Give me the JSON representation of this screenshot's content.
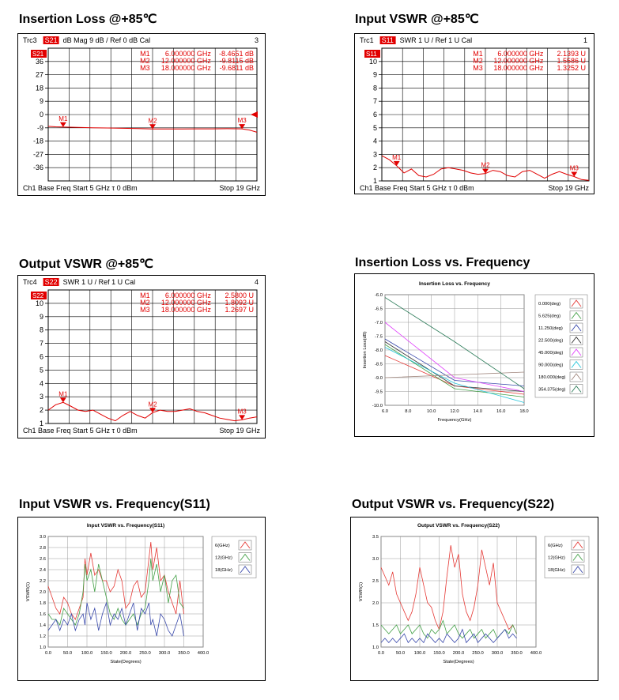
{
  "page_titles": [
    "Insertion Loss @+85℃",
    "Input VSWR @+85℃",
    "Output VSWR @+85℃",
    "Insertion Loss vs. Frequency",
    "Input VSWR vs. Frequency(S11)",
    "Output VSWR  vs. Frequency(S22)"
  ],
  "chart_data": [
    {
      "id": "il85",
      "type": "line",
      "title": "Insertion Loss @+85℃",
      "header": {
        "trc": "Trc3",
        "param": "S21",
        "rest": "dB Mag   9 dB /  Ref 0 dB      Cal",
        "num": "3",
        "tag": "S21"
      },
      "markers": [
        {
          "name": "M1",
          "freq": "6.000000 GHz",
          "val": "-8.4651  dB",
          "x": 6,
          "y": -8.47
        },
        {
          "name": "M2",
          "freq": "12.000000 GHz",
          "val": "-9.8115 dB",
          "x": 12,
          "y": -9.81
        },
        {
          "name": "M3",
          "freq": "18.000000 GHz",
          "val": "-9.6811 dB",
          "x": 18,
          "y": -9.68
        }
      ],
      "footer": {
        "left": "Ch1   Base Freq   Start  5 GHz τ   0 dBm",
        "right": "Stop  19 GHz"
      },
      "xlim": [
        5,
        19
      ],
      "ylim": [
        -45,
        45
      ],
      "yticks": [
        36,
        27,
        18,
        9,
        0,
        -9,
        -18,
        -27,
        -36
      ],
      "yticklabels": [
        "36",
        "27",
        "18",
        "9",
        "0",
        "-9",
        "-18",
        "-27",
        "-36"
      ],
      "x": [
        5,
        5.5,
        6,
        7,
        8,
        9,
        10,
        11,
        12,
        13,
        14,
        15,
        16,
        17,
        18,
        18.5,
        19
      ],
      "y": [
        -8,
        -8.3,
        -8.47,
        -8.7,
        -9.0,
        -9.1,
        -9.3,
        -9.5,
        -9.81,
        -9.8,
        -9.8,
        -9.7,
        -9.7,
        -9.6,
        -9.68,
        -10.5,
        -12
      ]
    },
    {
      "id": "ivswr85",
      "type": "line",
      "title": "Input VSWR @+85℃",
      "header": {
        "trc": "Trc1",
        "param": "S11",
        "rest": "SWR   1 U /  Ref 1 U      Cal",
        "num": "1",
        "tag": "S11"
      },
      "markers": [
        {
          "name": "M1",
          "freq": "6.000000 GHz",
          "val": "2.1393  U",
          "x": 6,
          "y": 2.14
        },
        {
          "name": "M2",
          "freq": "12.000000 GHz",
          "val": "1.5586  U",
          "x": 12,
          "y": 1.56
        },
        {
          "name": "M3",
          "freq": "18.000000 GHz",
          "val": "1.3252  U",
          "x": 18,
          "y": 1.33
        }
      ],
      "footer": {
        "left": "Ch1   Base Freq   Start  5 GHz τ   0 dBm",
        "right": "Stop  19 GHz"
      },
      "xlim": [
        5,
        19
      ],
      "ylim": [
        1,
        11
      ],
      "yticks": [
        10,
        9,
        8,
        7,
        6,
        5,
        4,
        3,
        2,
        1
      ],
      "yticklabels": [
        "10",
        "9",
        "8",
        "7",
        "6",
        "5",
        "4",
        "3",
        "2",
        "1"
      ],
      "x": [
        5,
        5.5,
        6,
        6.5,
        7,
        7.5,
        8,
        8.5,
        9,
        9.5,
        10,
        10.5,
        11,
        11.5,
        12,
        12.5,
        13,
        13.5,
        14,
        14.5,
        15,
        15.5,
        16,
        16.5,
        17,
        17.5,
        18,
        18.5,
        19
      ],
      "y": [
        2.9,
        2.6,
        2.14,
        1.6,
        1.9,
        1.4,
        1.3,
        1.5,
        1.9,
        2.0,
        1.9,
        1.8,
        1.6,
        1.5,
        1.56,
        1.8,
        1.7,
        1.4,
        1.3,
        1.7,
        1.8,
        1.5,
        1.2,
        1.5,
        1.7,
        1.5,
        1.33,
        1.1,
        1.05
      ]
    },
    {
      "id": "ovswr85",
      "type": "line",
      "title": "Output VSWR @+85℃",
      "header": {
        "trc": "Trc4",
        "param": "S22",
        "rest": "SWR   1 U /  Ref 1 U      Cal",
        "num": "4",
        "tag": "S22"
      },
      "markers": [
        {
          "name": "M1",
          "freq": "6.000000 GHz",
          "val": "2.5800  U",
          "x": 6,
          "y": 2.58
        },
        {
          "name": "M2",
          "freq": "12.000000 GHz",
          "val": "1.8092  U",
          "x": 12,
          "y": 1.81
        },
        {
          "name": "M3",
          "freq": "18.000000 GHz",
          "val": "1.2697  U",
          "x": 18,
          "y": 1.27
        }
      ],
      "footer": {
        "left": "Ch1   Base Freq   Start  5 GHz τ   0 dBm",
        "right": "Stop  19 GHz"
      },
      "xlim": [
        5,
        19
      ],
      "ylim": [
        1,
        11
      ],
      "yticks": [
        10,
        9,
        8,
        7,
        6,
        5,
        4,
        3,
        2,
        1
      ],
      "yticklabels": [
        "10",
        "9",
        "8",
        "7",
        "6",
        "5",
        "4",
        "3",
        "2",
        "1"
      ],
      "x": [
        5,
        5.5,
        6,
        6.5,
        7,
        7.5,
        8,
        8.5,
        9,
        9.5,
        10,
        10.5,
        11,
        11.5,
        12,
        12.5,
        13,
        13.5,
        14,
        14.5,
        15,
        15.5,
        16,
        16.5,
        17,
        17.5,
        18,
        18.5,
        19
      ],
      "y": [
        2.0,
        2.4,
        2.58,
        2.3,
        2.0,
        1.9,
        2.0,
        1.7,
        1.4,
        1.2,
        1.6,
        1.9,
        1.6,
        1.4,
        1.81,
        2.0,
        1.9,
        1.9,
        2.0,
        2.1,
        1.9,
        1.8,
        1.6,
        1.4,
        1.3,
        1.2,
        1.27,
        1.4,
        1.5
      ]
    },
    {
      "id": "ilfreq",
      "type": "line",
      "title": "Insertion Loss vs. Frequency",
      "xlabel": "Frequency(GHz)",
      "ylabel": "Insertion Loss(dB)",
      "xlim": [
        6,
        18
      ],
      "ylim": [
        -10,
        -6
      ],
      "xticks": [
        6,
        8,
        10,
        12,
        14,
        16,
        18
      ],
      "xticklabels": [
        "6.0",
        "8.0",
        "10.0",
        "12.0",
        "14.0",
        "16.0",
        "18.0"
      ],
      "yticks": [
        -6.0,
        -6.5,
        -7.0,
        -7.5,
        -8.0,
        -8.5,
        -9.0,
        -9.5,
        -10.0
      ],
      "yticklabels": [
        "-6.0",
        "-6.5",
        "-7.0",
        "-7.5",
        "-8.0",
        "-8.5",
        "-9.0",
        "-9.5",
        "-10.0"
      ],
      "legend": "right",
      "x": [
        6,
        12,
        18
      ],
      "series": [
        {
          "name": "0.000(deg)",
          "color": "#e53935",
          "values": [
            -8.2,
            -9.3,
            -9.6
          ]
        },
        {
          "name": "5.625(deg)",
          "color": "#43a047",
          "values": [
            -7.8,
            -9.4,
            -9.7
          ]
        },
        {
          "name": "11.250(deg)",
          "color": "#3949ab",
          "values": [
            -7.6,
            -9.1,
            -9.3
          ]
        },
        {
          "name": "22.500(deg)",
          "color": "#333333",
          "values": [
            -7.7,
            -9.3,
            -9.5
          ]
        },
        {
          "name": "45.000(deg)",
          "color": "#e040fb",
          "values": [
            -7.0,
            -9.0,
            -9.5
          ]
        },
        {
          "name": "90.000(deg)",
          "color": "#26c6da",
          "values": [
            -7.9,
            -9.2,
            -9.9
          ]
        },
        {
          "name": "180.000(deg)",
          "color": "#a1887f",
          "values": [
            -9.0,
            -8.9,
            -8.8
          ]
        },
        {
          "name": "354.375(deg)",
          "color": "#2e7d5b",
          "values": [
            -6.1,
            -7.7,
            -9.4
          ]
        }
      ]
    },
    {
      "id": "ivswrstate",
      "type": "line",
      "title": "Input VSWR vs. Frequency(S11)",
      "xlabel": "State(Degrees)",
      "ylabel": "VSWR(1)",
      "xlim": [
        0,
        400
      ],
      "ylim": [
        1.0,
        3.0
      ],
      "xticks": [
        0,
        50,
        100,
        150,
        200,
        250,
        300,
        350,
        400
      ],
      "xticklabels": [
        "0.0",
        "50.0",
        "100.0",
        "150.0",
        "200.0",
        "250.0",
        "300.0",
        "350.0",
        "400.0"
      ],
      "yticks": [
        1.0,
        1.2,
        1.4,
        1.6,
        1.8,
        2.0,
        2.2,
        2.4,
        2.6,
        2.8,
        3.0
      ],
      "yticklabels": [
        "1.0",
        "1.2",
        "1.4",
        "1.6",
        "1.8",
        "2.0",
        "2.2",
        "2.4",
        "2.6",
        "2.8",
        "3.0"
      ],
      "legend": "right",
      "x": [
        0,
        10,
        20,
        30,
        40,
        50,
        60,
        70,
        80,
        90,
        95,
        100,
        110,
        120,
        130,
        140,
        150,
        160,
        170,
        180,
        190,
        200,
        210,
        220,
        230,
        240,
        250,
        260,
        265,
        270,
        280,
        290,
        300,
        310,
        320,
        330,
        340,
        350
      ],
      "series": [
        {
          "name": "6(GHz)",
          "color": "#e53935",
          "values": [
            2.1,
            1.9,
            1.7,
            1.6,
            1.9,
            1.8,
            1.6,
            1.5,
            1.7,
            1.9,
            2.6,
            2.3,
            2.7,
            2.3,
            2.4,
            2.2,
            2.2,
            2.0,
            2.1,
            2.4,
            2.2,
            1.7,
            1.8,
            2.1,
            2.2,
            1.9,
            2.0,
            2.6,
            2.9,
            2.4,
            2.8,
            2.2,
            2.3,
            2.0,
            1.8,
            1.6,
            2.2,
            1.6
          ]
        },
        {
          "name": "12(GHz)",
          "color": "#43a047",
          "values": [
            1.6,
            1.5,
            1.5,
            1.4,
            1.7,
            1.6,
            1.5,
            1.4,
            1.6,
            2.0,
            2.5,
            2.2,
            2.4,
            2.0,
            2.5,
            2.2,
            1.9,
            1.6,
            1.5,
            1.7,
            1.5,
            1.4,
            1.5,
            1.6,
            1.4,
            1.6,
            1.7,
            2.2,
            2.6,
            2.2,
            2.5,
            2.0,
            2.3,
            1.8,
            2.2,
            2.3,
            1.8,
            1.7
          ]
        },
        {
          "name": "18(GHz)",
          "color": "#3949ab",
          "values": [
            1.3,
            1.4,
            1.5,
            1.3,
            1.5,
            1.4,
            1.6,
            1.3,
            1.5,
            1.6,
            1.4,
            1.8,
            1.5,
            1.7,
            1.3,
            1.6,
            1.8,
            1.4,
            1.6,
            1.5,
            1.7,
            1.4,
            1.6,
            1.8,
            1.3,
            1.7,
            1.6,
            1.8,
            1.4,
            1.5,
            1.2,
            1.6,
            1.5,
            1.3,
            1.2,
            1.4,
            1.6,
            1.2
          ]
        }
      ]
    },
    {
      "id": "ovswrstate",
      "type": "line",
      "title": "Output VSWR  vs. Frequency(S22)",
      "xlabel": "State(Degrees)",
      "ylabel": "VSWR(1)",
      "xlim": [
        0,
        400
      ],
      "ylim": [
        1.0,
        3.5
      ],
      "xticks": [
        0,
        50,
        100,
        150,
        200,
        250,
        300,
        350,
        400
      ],
      "xticklabels": [
        "0.0",
        "50.0",
        "100.0",
        "150.0",
        "200.0",
        "250.0",
        "300.0",
        "350.0",
        "400.0"
      ],
      "yticks": [
        1.0,
        1.5,
        2.0,
        2.5,
        3.0,
        3.5
      ],
      "yticklabels": [
        "1.0",
        "1.5",
        "2.0",
        "2.5",
        "3.0",
        "3.5"
      ],
      "legend": "right",
      "x": [
        0,
        10,
        20,
        30,
        40,
        50,
        60,
        70,
        80,
        90,
        100,
        110,
        120,
        130,
        140,
        150,
        160,
        170,
        180,
        190,
        200,
        210,
        220,
        230,
        240,
        250,
        260,
        270,
        280,
        290,
        300,
        310,
        320,
        330,
        340,
        350
      ],
      "series": [
        {
          "name": "6(GHz)",
          "color": "#e53935",
          "values": [
            2.8,
            2.6,
            2.4,
            2.7,
            2.2,
            2.0,
            1.8,
            1.6,
            1.8,
            2.2,
            2.8,
            2.4,
            2.0,
            1.9,
            1.6,
            1.4,
            1.8,
            2.6,
            3.3,
            2.8,
            3.1,
            2.2,
            1.8,
            1.6,
            1.9,
            2.4,
            3.2,
            2.8,
            2.4,
            2.9,
            2.0,
            1.8,
            1.6,
            1.4,
            1.5,
            1.3
          ]
        },
        {
          "name": "12(GHz)",
          "color": "#43a047",
          "values": [
            1.5,
            1.4,
            1.3,
            1.4,
            1.5,
            1.3,
            1.4,
            1.5,
            1.3,
            1.4,
            1.5,
            1.3,
            1.2,
            1.4,
            1.3,
            1.4,
            1.6,
            1.3,
            1.4,
            1.5,
            1.3,
            1.2,
            1.3,
            1.4,
            1.2,
            1.3,
            1.4,
            1.2,
            1.3,
            1.4,
            1.2,
            1.3,
            1.4,
            1.3,
            1.5,
            1.3
          ]
        },
        {
          "name": "18(GHz)",
          "color": "#3949ab",
          "values": [
            1.1,
            1.2,
            1.1,
            1.2,
            1.1,
            1.2,
            1.3,
            1.1,
            1.2,
            1.1,
            1.2,
            1.1,
            1.3,
            1.2,
            1.1,
            1.2,
            1.1,
            1.3,
            1.2,
            1.1,
            1.2,
            1.4,
            1.1,
            1.2,
            1.3,
            1.1,
            1.2,
            1.3,
            1.2,
            1.1,
            1.2,
            1.3,
            1.4,
            1.2,
            1.3,
            1.2
          ]
        }
      ]
    }
  ]
}
